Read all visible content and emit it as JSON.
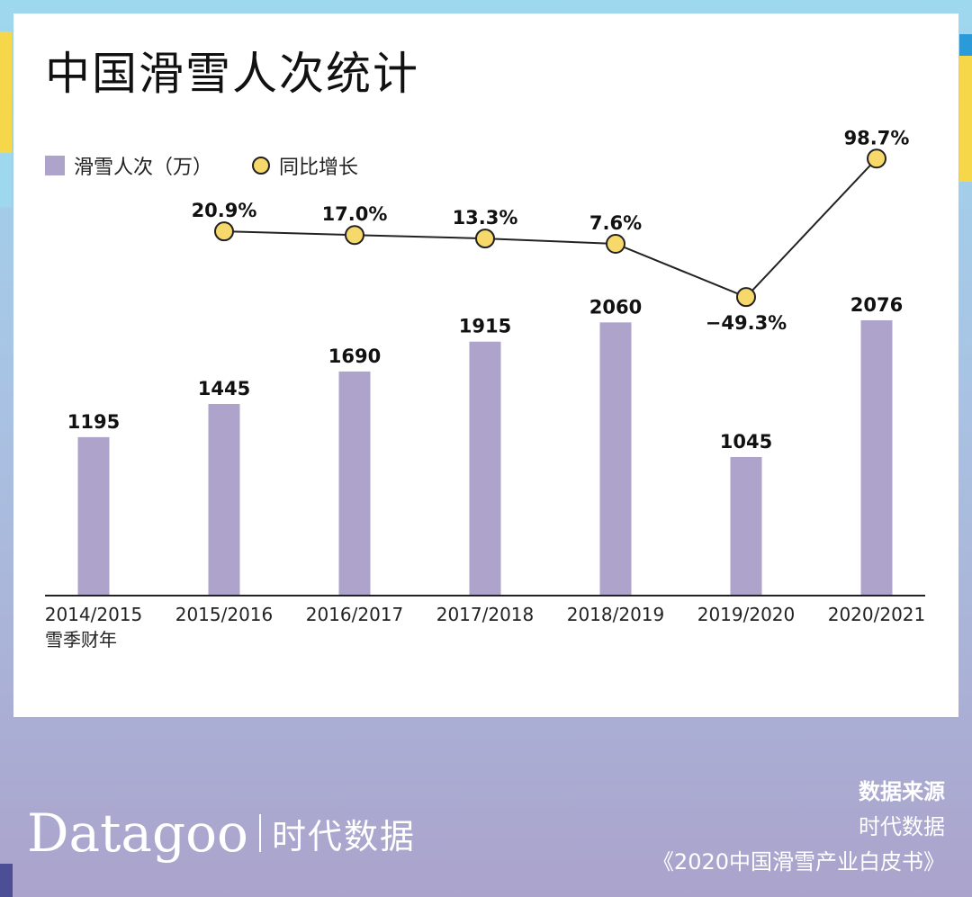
{
  "title": "中国滑雪人次统计",
  "legend": {
    "bars_label": "滑雪人次（万）",
    "line_label": "同比增长"
  },
  "colors": {
    "bar": "#ada3cb",
    "dot_fill": "#f6d96a",
    "line": "#222222",
    "accent_yellow": "#f6d74a"
  },
  "chart_data": {
    "type": "bar",
    "title": "中国滑雪人次统计",
    "xlabel": "雪季财年",
    "ylabel": "",
    "categories": [
      "2014/2015",
      "2015/2016",
      "2016/2017",
      "2017/2018",
      "2018/2019",
      "2019/2020",
      "2020/2021"
    ],
    "series": [
      {
        "name": "滑雪人次（万）",
        "kind": "bar",
        "values": [
          1195,
          1445,
          1690,
          1915,
          2060,
          1045,
          2076
        ],
        "labels": [
          "1195",
          "1445",
          "1690",
          "1915",
          "2060",
          "1045",
          "2076"
        ]
      },
      {
        "name": "同比增长",
        "kind": "line",
        "values": [
          null,
          20.9,
          17.0,
          13.3,
          7.6,
          -49.3,
          98.7
        ],
        "labels": [
          null,
          "20.9%",
          "17.0%",
          "13.3%",
          "7.6%",
          "−49.3%",
          "98.7%"
        ]
      }
    ],
    "ylim": [
      0,
      2100
    ]
  },
  "footer": {
    "brand_en": "Datagoo",
    "brand_cn": "时代数据",
    "source_label": "数据来源",
    "source_org": "时代数据",
    "source_doc": "《2020中国滑雪产业白皮书》"
  }
}
